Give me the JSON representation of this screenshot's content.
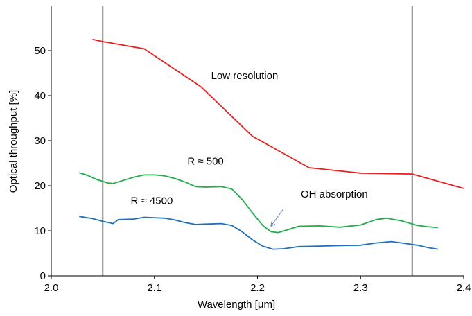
{
  "chart_data": {
    "type": "line",
    "title": "",
    "xlabel": "Wavelength [μm]",
    "ylabel": "Optical throughput [%]",
    "xlim": [
      2.0,
      2.4
    ],
    "ylim": [
      0,
      60
    ],
    "xticks": [
      "2.0",
      "2.1",
      "2.2",
      "2.3",
      "2.4"
    ],
    "yticks": [
      "0",
      "10",
      "20",
      "30",
      "40",
      "50"
    ],
    "grid": false,
    "vertical_lines": [
      2.05,
      2.35
    ],
    "series": [
      {
        "color": "#ee1c1c",
        "points": [
          [
            2.04,
            52.5
          ],
          [
            2.05,
            52.0
          ],
          [
            2.09,
            50.4
          ],
          [
            2.145,
            42.0
          ],
          [
            2.195,
            31.0
          ],
          [
            2.25,
            24.0
          ],
          [
            2.3,
            22.8
          ],
          [
            2.35,
            22.6
          ],
          [
            2.4,
            19.4
          ]
        ]
      },
      {
        "color": "#1fae49",
        "points": [
          [
            2.027,
            22.9
          ],
          [
            2.035,
            22.3
          ],
          [
            2.045,
            21.3
          ],
          [
            2.055,
            20.6
          ],
          [
            2.06,
            20.5
          ],
          [
            2.07,
            21.2
          ],
          [
            2.08,
            21.9
          ],
          [
            2.09,
            22.4
          ],
          [
            2.1,
            22.4
          ],
          [
            2.11,
            22.2
          ],
          [
            2.12,
            21.6
          ],
          [
            2.13,
            20.8
          ],
          [
            2.14,
            19.8
          ],
          [
            2.15,
            19.7
          ],
          [
            2.165,
            19.8
          ],
          [
            2.175,
            19.3
          ],
          [
            2.185,
            17.0
          ],
          [
            2.195,
            14.0
          ],
          [
            2.205,
            11.2
          ],
          [
            2.213,
            9.8
          ],
          [
            2.22,
            9.6
          ],
          [
            2.23,
            10.3
          ],
          [
            2.24,
            11.0
          ],
          [
            2.26,
            11.1
          ],
          [
            2.28,
            10.8
          ],
          [
            2.3,
            11.3
          ],
          [
            2.315,
            12.5
          ],
          [
            2.325,
            12.8
          ],
          [
            2.34,
            12.2
          ],
          [
            2.355,
            11.2
          ],
          [
            2.365,
            10.9
          ],
          [
            2.375,
            10.7
          ]
        ]
      },
      {
        "color": "#1f6fbe",
        "points": [
          [
            2.027,
            13.2
          ],
          [
            2.04,
            12.7
          ],
          [
            2.05,
            12.1
          ],
          [
            2.06,
            11.6
          ],
          [
            2.065,
            12.5
          ],
          [
            2.08,
            12.6
          ],
          [
            2.09,
            13.0
          ],
          [
            2.1,
            12.9
          ],
          [
            2.11,
            12.8
          ],
          [
            2.12,
            12.4
          ],
          [
            2.13,
            11.8
          ],
          [
            2.14,
            11.4
          ],
          [
            2.15,
            11.5
          ],
          [
            2.165,
            11.6
          ],
          [
            2.175,
            11.2
          ],
          [
            2.185,
            9.8
          ],
          [
            2.195,
            8.0
          ],
          [
            2.205,
            6.6
          ],
          [
            2.215,
            5.9
          ],
          [
            2.225,
            6.0
          ],
          [
            2.24,
            6.5
          ],
          [
            2.26,
            6.6
          ],
          [
            2.28,
            6.7
          ],
          [
            2.3,
            6.8
          ],
          [
            2.315,
            7.3
          ],
          [
            2.33,
            7.6
          ],
          [
            2.34,
            7.3
          ],
          [
            2.355,
            6.8
          ],
          [
            2.365,
            6.3
          ],
          [
            2.375,
            5.9
          ]
        ]
      }
    ],
    "annotations": [
      {
        "text": "Low resolution",
        "x": 2.155,
        "y": 43.7
      },
      {
        "text": "R ≈ 500",
        "x": 2.132,
        "y": 24.7
      },
      {
        "text": "R ≈ 4500",
        "x": 2.077,
        "y": 15.9
      },
      {
        "text": "OH absorption",
        "x": 2.242,
        "y": 17.4
      }
    ],
    "arrow": {
      "from": [
        2.225,
        14.8
      ],
      "to": [
        2.213,
        11.0
      ],
      "color": "#5a86c8"
    }
  }
}
